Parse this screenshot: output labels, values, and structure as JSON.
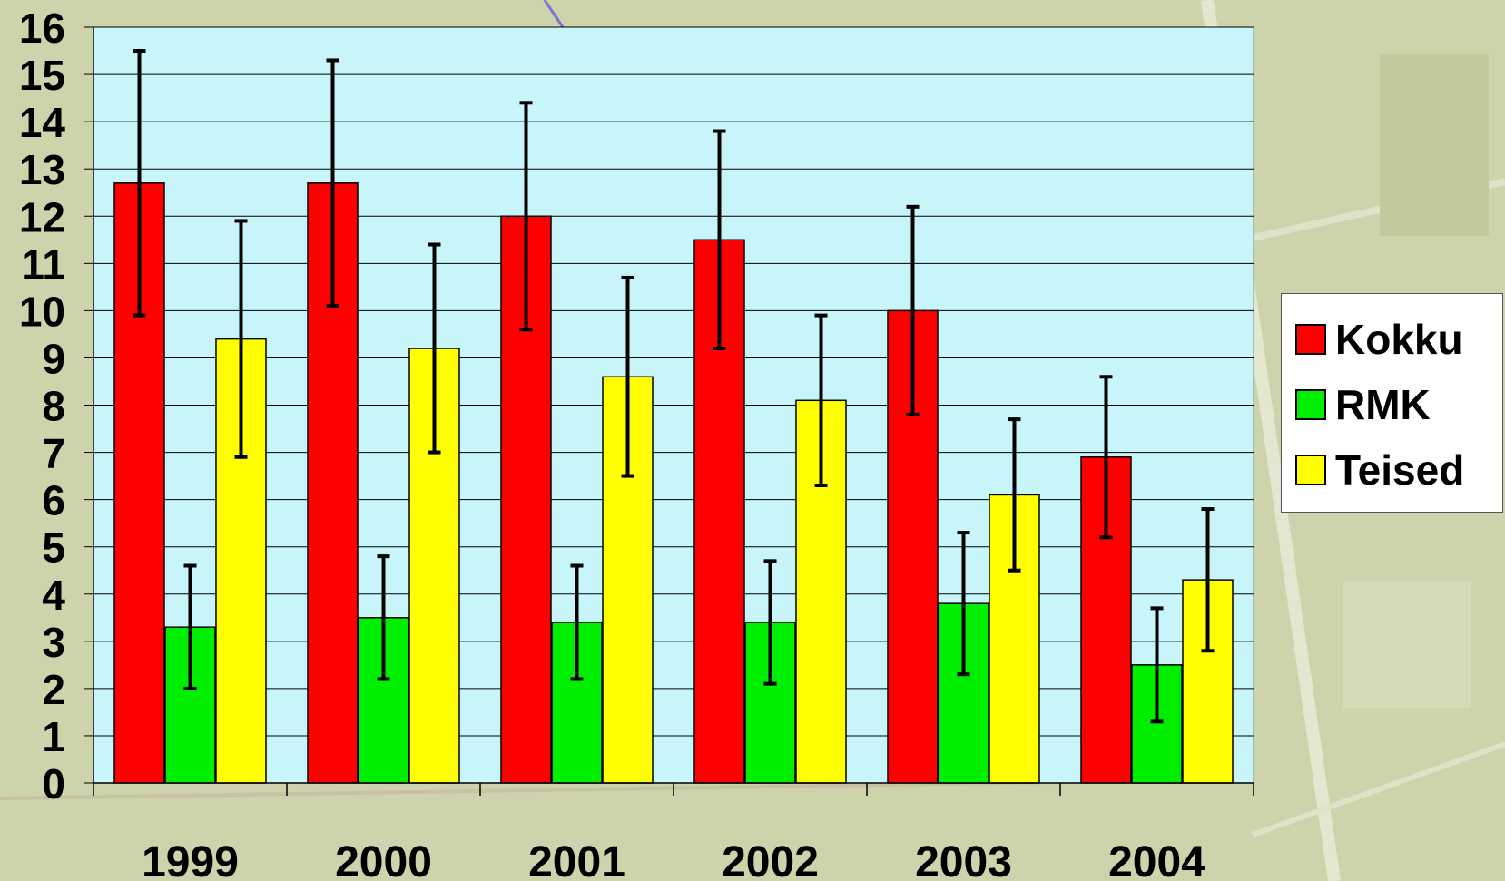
{
  "chart_data": {
    "type": "bar",
    "categories": [
      "1999",
      "2000",
      "2001",
      "2002",
      "2003",
      "2004"
    ],
    "series": [
      {
        "name": "Kokku",
        "color": "#ff0000",
        "values": [
          12.7,
          12.7,
          12.0,
          11.5,
          10.0,
          6.9
        ],
        "error_low": [
          9.9,
          10.1,
          9.6,
          9.2,
          7.8,
          5.2
        ],
        "error_high": [
          15.5,
          15.3,
          14.4,
          13.8,
          12.2,
          8.6
        ]
      },
      {
        "name": "RMK",
        "color": "#00ee00",
        "values": [
          3.3,
          3.5,
          3.4,
          3.4,
          3.8,
          2.5
        ],
        "error_low": [
          2.0,
          2.2,
          2.2,
          2.1,
          2.3,
          1.3
        ],
        "error_high": [
          4.6,
          4.8,
          4.6,
          4.7,
          5.3,
          3.7
        ]
      },
      {
        "name": "Teised",
        "color": "#ffff00",
        "values": [
          9.4,
          9.2,
          8.6,
          8.1,
          6.1,
          4.3
        ],
        "error_low": [
          6.9,
          7.0,
          6.5,
          6.3,
          4.5,
          2.8
        ],
        "error_high": [
          11.9,
          11.4,
          10.7,
          9.9,
          7.7,
          5.8
        ]
      }
    ],
    "y_ticks": [
      "0",
      "1",
      "2",
      "3",
      "4",
      "5",
      "6",
      "7",
      "8",
      "9",
      "10",
      "11",
      "12",
      "13",
      "14",
      "15",
      "16"
    ],
    "ylim": [
      0,
      16
    ],
    "grid": true,
    "legend_position": "right",
    "plot_background": "#c8f5fa"
  }
}
